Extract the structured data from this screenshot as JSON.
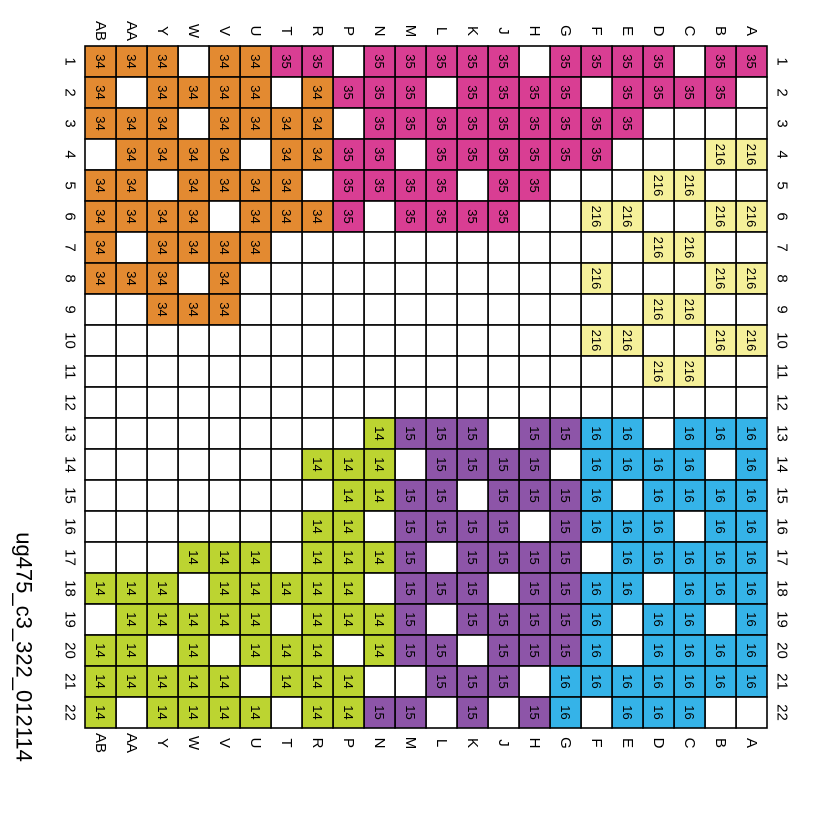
{
  "title": "ug475_c3_322_012114",
  "row_letters": [
    "A",
    "B",
    "C",
    "D",
    "E",
    "F",
    "G",
    "H",
    "J",
    "K",
    "L",
    "M",
    "N",
    "P",
    "R",
    "T",
    "U",
    "V",
    "W",
    "Y",
    "AA",
    "AB"
  ],
  "col_numbers": [
    "1",
    "2",
    "3",
    "4",
    "5",
    "6",
    "7",
    "8",
    "9",
    "10",
    "11",
    "12",
    "13",
    "14",
    "15",
    "16",
    "17",
    "18",
    "19",
    "20",
    "21",
    "22"
  ],
  "colors": {
    "34": "#E38A31",
    "35": "#D93E93",
    "216": "#F5F09A",
    "14": "#BCD431",
    "15": "#8D55A8",
    "16": "#35B3E8",
    "empty": "#FFFFFF",
    "grid": "#000000"
  },
  "pins": [
    "35 35 . 35 35 35 35 . 35 35 35 35 35 . 35 35 34 34 . 34 34 34",
    ". 35 35 35 35 . 35 35 35 35 . 35 35 35 34 . 34 34 34 34 . 34",
    ". . . . 35 35 35 35 35 35 35 35 35 . 34 34 34 34 . 34 34 34",
    "216 216 . . . 35 35 35 35 35 35 . 35 35 34 34 . 34 34 34 34 .",
    ". . 216 216 . . . 35 35 . 35 35 35 35 . 34 34 34 34 . 34 34",
    "216 216 . . 216 216 . . 35 35 35 35 . 35 34 34 34 . 34 34 34 34",
    ". . 216 216 . . . . . . . . . . . . 34 34 34 34 . 34",
    "216 216 . . . 216 . . . . . . . . . . . 34 . 34 34 34",
    ". . 216 216 . . . . . . . . . . . . . 34 34 34 . .",
    "216 216 . . 216 216 . . . . . . . . . . . . . . . .",
    ". . 216 216 . . . . . . . . . . . . . . . . . .",
    ". . . . . . . . . . . . . . . . . . . . . .",
    "16 16 16 . 16 16 15 15 . 15 15 15 14 . . . . . . . . .",
    "16 . 16 16 16 16 . 15 15 15 15 . 14 14 14 . . . . . . .",
    "16 16 16 16 . 16 15 15 15 . 15 15 14 14 . . . . . . . .",
    "16 16 . 16 16 16 15 . 15 15 15 15 . 14 14 . . . . . . .",
    "16 16 16 16 16 . 15 15 15 15 . 15 14 14 14 . 14 14 14 . . .",
    "16 16 16 . 16 16 15 15 . 15 15 15 . 14 14 14 14 14 . 14 14 14",
    "16 . 16 16 . 16 15 15 15 15 . 15 14 14 14 . 14 14 14 14 14 .",
    "16 16 16 16 . 16 15 15 15 . 15 15 14 . 14 14 14 . 14 . 14 14",
    "16 16 16 16 16 16 16 . 15 15 15 . . 14 14 14 . 14 14 14 14 14",
    ". . 16 16 16 . 16 15 . 15 . 15 15 14 14 . 14 14 14 14 . 14"
  ]
}
